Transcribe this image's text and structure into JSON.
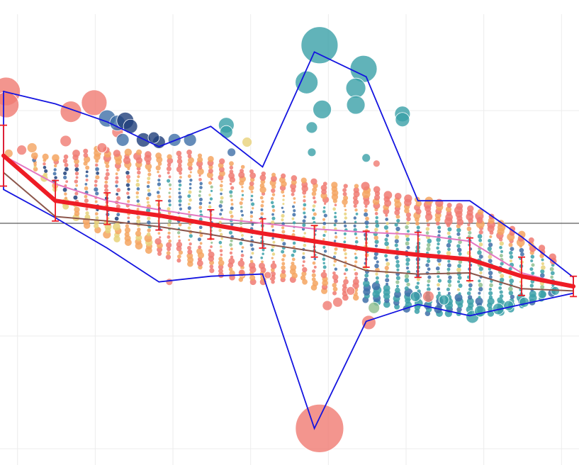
{
  "chart_data": {
    "type": "scatter",
    "title": "",
    "xlabel": "",
    "ylabel": "",
    "xlim": [
      -0.2,
      10.9
    ],
    "ylim": [
      -2.1,
      2.0
    ],
    "grid": true,
    "zero_line": 0,
    "colors": {
      "red": "#f07a72",
      "orange": "#f4a460",
      "yellow": "#e8d27a",
      "green": "#8fbf8f",
      "teal": "#3aa0a8",
      "blue": "#3e6fa8",
      "navy": "#1f3f7a",
      "envelope": "#1414e0",
      "mean": "#ee1c25",
      "pink": "#e377c2",
      "brown": "#8c564b"
    },
    "x": [
      0,
      1,
      2,
      3,
      4,
      5,
      6,
      7,
      8,
      9,
      10,
      11
    ],
    "series": [
      {
        "role": "mean",
        "values": [
          0.6,
          0.2,
          0.13,
          0.07,
          -0.01,
          -0.09,
          -0.16,
          -0.23,
          -0.28,
          -0.32,
          -0.47,
          -0.56
        ],
        "err": [
          0.27,
          0.18,
          0.14,
          0.13,
          0.13,
          0.13,
          0.14,
          0.16,
          0.2,
          0.19,
          0.17,
          0.09
        ]
      },
      {
        "role": "upper-quantile",
        "values": [
          0.6,
          0.35,
          0.2,
          0.12,
          0.05,
          0.0,
          -0.05,
          -0.08,
          -0.1,
          -0.16,
          -0.44,
          -0.56
        ]
      },
      {
        "role": "lower-quantile",
        "values": [
          0.45,
          0.06,
          0.02,
          -0.03,
          -0.1,
          -0.18,
          -0.25,
          -0.42,
          -0.45,
          -0.44,
          -0.58,
          -0.6
        ]
      },
      {
        "role": "envelope-upper",
        "values": [
          1.17,
          1.06,
          0.9,
          0.68,
          0.86,
          0.5,
          1.52,
          1.3,
          0.2,
          0.2,
          -0.12,
          -0.48
        ]
      },
      {
        "role": "envelope-lower",
        "values": [
          0.3,
          0.05,
          -0.22,
          -0.52,
          -0.47,
          -0.45,
          -1.82,
          -0.87,
          -0.72,
          -0.82,
          -0.72,
          -0.62
        ]
      }
    ],
    "scatter_points": [
      [
        0.05,
        1.17,
        40,
        "red"
      ],
      [
        0.05,
        1.05,
        36,
        "red"
      ],
      [
        0.1,
        0.62,
        12,
        "orange"
      ],
      [
        0.35,
        0.65,
        14,
        "red"
      ],
      [
        0.55,
        0.67,
        14,
        "orange"
      ],
      [
        1.3,
        0.99,
        30,
        "red"
      ],
      [
        1.75,
        1.07,
        36,
        "red"
      ],
      [
        1.2,
        0.73,
        16,
        "red"
      ],
      [
        2.2,
        0.81,
        16,
        "red"
      ],
      [
        1.9,
        0.67,
        14,
        "red"
      ],
      [
        2.0,
        0.93,
        24,
        "blue"
      ],
      [
        2.2,
        0.89,
        22,
        "blue"
      ],
      [
        2.35,
        0.91,
        24,
        "navy"
      ],
      [
        2.45,
        0.86,
        20,
        "navy"
      ],
      [
        2.3,
        0.74,
        18,
        "blue"
      ],
      [
        2.7,
        0.74,
        20,
        "navy"
      ],
      [
        3.0,
        0.72,
        18,
        "navy"
      ],
      [
        3.3,
        0.74,
        18,
        "blue"
      ],
      [
        3.6,
        0.74,
        18,
        "blue"
      ],
      [
        2.9,
        0.76,
        16,
        "navy"
      ],
      [
        4.3,
        0.87,
        22,
        "teal"
      ],
      [
        4.3,
        0.81,
        18,
        "teal"
      ],
      [
        4.7,
        0.72,
        14,
        "yellow"
      ],
      [
        4.4,
        0.63,
        12,
        "blue"
      ],
      [
        6.1,
        1.58,
        52,
        "teal"
      ],
      [
        5.85,
        1.25,
        32,
        "teal"
      ],
      [
        6.15,
        1.01,
        26,
        "teal"
      ],
      [
        6.95,
        1.37,
        38,
        "teal"
      ],
      [
        6.8,
        1.2,
        28,
        "teal"
      ],
      [
        6.8,
        1.05,
        26,
        "teal"
      ],
      [
        5.95,
        0.85,
        16,
        "teal"
      ],
      [
        7.7,
        0.97,
        22,
        "teal"
      ],
      [
        7.7,
        0.92,
        20,
        "teal"
      ],
      [
        5.95,
        0.63,
        12,
        "teal"
      ],
      [
        7.0,
        0.58,
        12,
        "teal"
      ],
      [
        7.2,
        0.53,
        10,
        "red"
      ],
      [
        6.1,
        -1.82,
        68,
        "red"
      ],
      [
        7.05,
        -0.88,
        20,
        "red"
      ],
      [
        6.25,
        -0.73,
        14,
        "red"
      ],
      [
        6.45,
        -0.7,
        14,
        "red"
      ],
      [
        7.15,
        -0.75,
        16,
        "green"
      ],
      [
        6.7,
        -0.6,
        12,
        "red"
      ],
      [
        8.2,
        -0.65,
        16,
        "red"
      ],
      [
        7.95,
        -0.65,
        14,
        "teal"
      ],
      [
        8.5,
        -0.68,
        14,
        "teal"
      ],
      [
        9.05,
        -0.83,
        18,
        "teal"
      ],
      [
        9.2,
        -0.78,
        16,
        "teal"
      ],
      [
        9.55,
        -0.76,
        16,
        "teal"
      ],
      [
        9.75,
        -0.73,
        14,
        "teal"
      ],
      [
        10.05,
        -0.7,
        14,
        "teal"
      ],
      [
        10.4,
        -0.63,
        12,
        "teal"
      ],
      [
        10.65,
        -0.6,
        12,
        "teal"
      ],
      [
        3.2,
        -0.52,
        10,
        "red"
      ],
      [
        4.6,
        -0.44,
        10,
        "red"
      ],
      [
        5.1,
        -0.46,
        10,
        "red"
      ]
    ],
    "point_columns": {
      "x": [
        0.6,
        0.8,
        1.0,
        1.2,
        1.4,
        1.6,
        1.8,
        2.0,
        2.2,
        2.4,
        2.6,
        2.8,
        3.0,
        3.2,
        3.4,
        3.6,
        3.8,
        4.0,
        4.2,
        4.4,
        4.6,
        4.8,
        5.0,
        5.2,
        5.4,
        5.6,
        5.8,
        6.0,
        6.2,
        6.4,
        6.6,
        6.8,
        7.0,
        7.2,
        7.4,
        7.6,
        7.8,
        8.0,
        8.2,
        8.4,
        8.6,
        8.8,
        9.0,
        9.2,
        9.4,
        9.6,
        9.8,
        10.0,
        10.2,
        10.4,
        10.6
      ],
      "top": [
        0.6,
        0.59,
        0.58,
        0.59,
        0.62,
        0.64,
        0.66,
        0.65,
        0.62,
        0.63,
        0.63,
        0.61,
        0.6,
        0.59,
        0.62,
        0.63,
        0.6,
        0.57,
        0.55,
        0.53,
        0.5,
        0.46,
        0.44,
        0.43,
        0.42,
        0.4,
        0.38,
        0.37,
        0.35,
        0.34,
        0.33,
        0.33,
        0.33,
        0.3,
        0.25,
        0.24,
        0.22,
        0.21,
        0.2,
        0.18,
        0.16,
        0.15,
        0.13,
        0.1,
        0.06,
        0.0,
        -0.05,
        -0.1,
        -0.15,
        -0.22,
        -0.3
      ],
      "bottom": [
        0.48,
        0.4,
        0.3,
        0.15,
        0.05,
        -0.02,
        -0.06,
        -0.1,
        -0.14,
        -0.17,
        -0.2,
        -0.24,
        -0.27,
        -0.3,
        -0.33,
        -0.36,
        -0.39,
        -0.42,
        -0.46,
        -0.48,
        -0.5,
        -0.52,
        -0.52,
        -0.52,
        -0.5,
        -0.5,
        -0.52,
        -0.57,
        -0.6,
        -0.62,
        -0.66,
        -0.66,
        -0.68,
        -0.7,
        -0.72,
        -0.74,
        -0.76,
        -0.78,
        -0.8,
        -0.8,
        -0.8,
        -0.8,
        -0.8,
        -0.8,
        -0.8,
        -0.79,
        -0.76,
        -0.73,
        -0.7,
        -0.67,
        -0.62
      ]
    }
  }
}
